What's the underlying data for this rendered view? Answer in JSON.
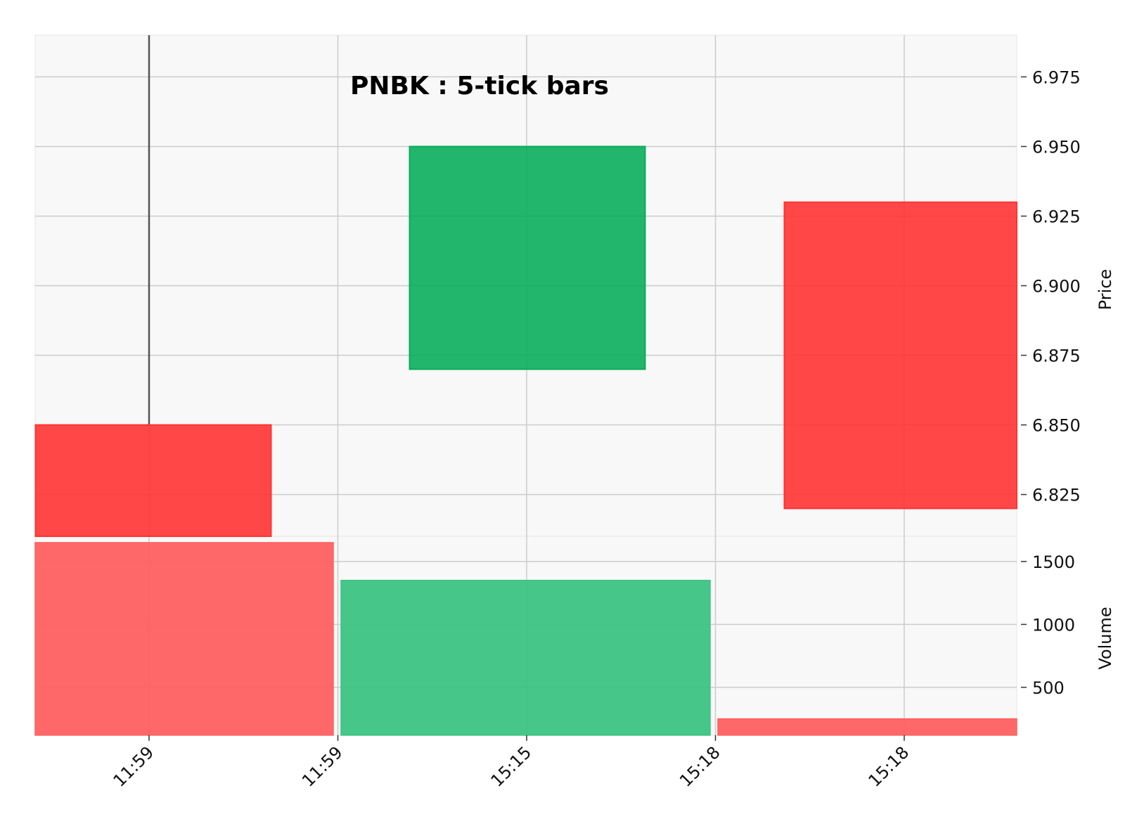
{
  "chart_data": {
    "type": "candlestick",
    "title": "PNBK : 5-tick bars",
    "x_tick_labels": [
      "11:59",
      "11:59",
      "15:15",
      "15:18",
      "15:18"
    ],
    "candles": [
      {
        "open": 6.85,
        "high": 6.99,
        "low": 6.81,
        "close": 6.81
      },
      {
        "open": 6.87,
        "high": 6.95,
        "low": 6.87,
        "close": 6.95
      },
      {
        "open": 6.93,
        "high": 6.93,
        "low": 6.82,
        "close": 6.82
      }
    ],
    "price_axis": {
      "label": "Price",
      "ticks": [
        "6.825",
        "6.850",
        "6.875",
        "6.900",
        "6.925",
        "6.950",
        "6.975"
      ],
      "ylim": [
        6.81,
        6.99
      ]
    },
    "volume_axis": {
      "label": "Volume",
      "ticks": [
        "500",
        "1000",
        "1500"
      ],
      "ylim": [
        120,
        1700
      ]
    },
    "volume": [
      1650,
      1350,
      250
    ],
    "colors": {
      "up": "#0aad5c",
      "down": "#ff3333",
      "volume_up": "#3cc383",
      "volume_down": "#ff6060",
      "background": "#f8f8f8",
      "grid": "#cccccc"
    },
    "grid": true
  }
}
